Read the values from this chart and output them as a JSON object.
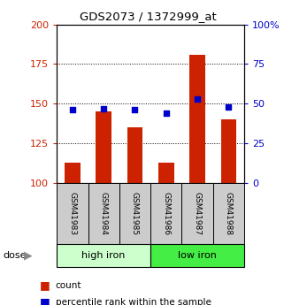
{
  "title": "GDS2073 / 1372999_at",
  "samples": [
    "GSM41983",
    "GSM41984",
    "GSM41985",
    "GSM41986",
    "GSM41987",
    "GSM41988"
  ],
  "count_values": [
    113,
    145,
    135,
    113,
    181,
    140
  ],
  "percentile_values": [
    46,
    47,
    46,
    44,
    53,
    48
  ],
  "groups": [
    {
      "label": "high iron",
      "indices": [
        0,
        1,
        2
      ],
      "color": "#ccffcc"
    },
    {
      "label": "low iron",
      "indices": [
        3,
        4,
        5
      ],
      "color": "#44ee44"
    }
  ],
  "left_ylim": [
    100,
    200
  ],
  "left_yticks": [
    100,
    125,
    150,
    175,
    200
  ],
  "right_ylim": [
    0,
    100
  ],
  "right_yticks": [
    0,
    25,
    50,
    75,
    100
  ],
  "right_yticklabels": [
    "0",
    "25",
    "50",
    "75",
    "100%"
  ],
  "bar_color": "#cc2200",
  "dot_color": "#0000cc",
  "label_bg_color": "#cccccc",
  "dose_label": "dose",
  "legend_count": "count",
  "legend_pct": "percentile rank within the sample",
  "bar_width": 0.5,
  "left_label_color": "#cc2200",
  "right_label_color": "#0000cc",
  "fig_width": 3.21,
  "fig_height": 3.45,
  "dpi": 100
}
